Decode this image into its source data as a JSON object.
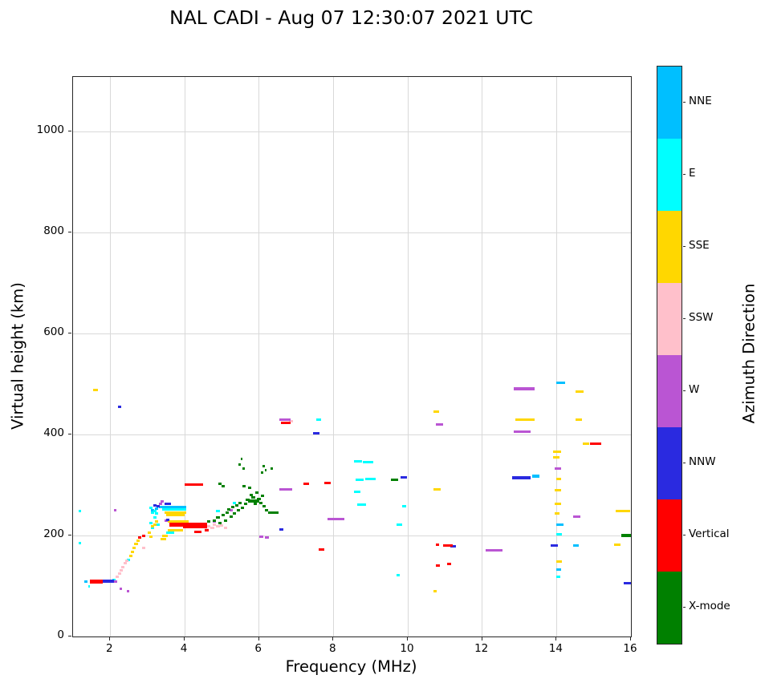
{
  "title": "NAL CADI - Aug 07 12:30:07 2021 UTC",
  "chart_data": {
    "type": "scatter",
    "title": "NAL CADI - Aug 07 12:30:07 2021 UTC",
    "xlabel": "Frequency (MHz)",
    "ylabel": "Virtual height (km)",
    "xlim": [
      1,
      16
    ],
    "ylim": [
      0,
      1108
    ],
    "xticks": [
      2,
      4,
      6,
      8,
      10,
      12,
      14,
      16
    ],
    "yticks": [
      0,
      200,
      400,
      600,
      800,
      1000
    ],
    "grid": true,
    "grid_color": "#d9d9d9",
    "legend_position": "colorbar-right",
    "marker": "horizontal-dash",
    "point_format": "[freq_MHz, height_km, width_MHz_optional, thickness_px_optional]",
    "series": [
      {
        "name": "NNE",
        "color": "#00BFFF",
        "points": [
          [
            1.3,
            108
          ],
          [
            3.1,
            250
          ],
          [
            3.2,
            253
          ],
          [
            3.3,
            256
          ],
          [
            3.4,
            257,
            0.65
          ],
          [
            13.35,
            317,
            0.18,
            4
          ],
          [
            14.0,
            502,
            0.22
          ],
          [
            14.0,
            222,
            0.18
          ],
          [
            14.0,
            132,
            0.12
          ],
          [
            14.45,
            180,
            0.15
          ]
        ]
      },
      {
        "name": "E",
        "color": "#00FFFF",
        "points": [
          [
            1.15,
            248,
            0.06
          ],
          [
            1.15,
            185,
            0.06
          ],
          [
            1.4,
            100,
            0.06
          ],
          [
            2.05,
            112
          ],
          [
            2.45,
            152
          ],
          [
            3.05,
            255
          ],
          [
            3.05,
            225
          ],
          [
            3.1,
            245
          ],
          [
            3.1,
            215
          ],
          [
            3.15,
            235
          ],
          [
            3.15,
            248
          ],
          [
            3.2,
            243
          ],
          [
            3.25,
            222
          ],
          [
            3.4,
            251,
            0.65
          ],
          [
            3.5,
            206,
            0.22
          ],
          [
            4.85,
            248
          ],
          [
            5.3,
            265
          ],
          [
            7.55,
            430,
            0.12
          ],
          [
            8.55,
            347,
            0.22
          ],
          [
            8.8,
            346,
            0.28
          ],
          [
            8.6,
            310,
            0.22
          ],
          [
            8.85,
            312,
            0.28
          ],
          [
            8.55,
            286,
            0.18
          ],
          [
            8.65,
            261,
            0.22
          ],
          [
            9.7,
            222,
            0.15
          ],
          [
            9.7,
            122
          ],
          [
            9.85,
            258,
            0.1
          ],
          [
            14.0,
            203,
            0.15
          ],
          [
            14.0,
            118,
            0.1
          ]
        ]
      },
      {
        "name": "SSE",
        "color": "#FFD700",
        "points": [
          [
            1.55,
            488,
            0.12
          ],
          [
            2.5,
            160
          ],
          [
            2.55,
            168
          ],
          [
            2.6,
            176
          ],
          [
            2.65,
            183
          ],
          [
            2.7,
            190
          ],
          [
            3.0,
            205
          ],
          [
            3.05,
            198
          ],
          [
            3.1,
            218
          ],
          [
            3.15,
            222
          ],
          [
            3.2,
            228
          ],
          [
            3.35,
            193,
            0.15
          ],
          [
            3.4,
            199,
            0.15
          ],
          [
            3.45,
            246,
            0.6
          ],
          [
            3.5,
            241,
            0.5
          ],
          [
            3.55,
            228,
            0.55
          ],
          [
            3.55,
            211,
            0.4
          ],
          [
            10.7,
            445,
            0.15
          ],
          [
            10.7,
            292,
            0.18
          ],
          [
            10.7,
            90,
            0.08
          ],
          [
            12.9,
            430,
            0.5
          ],
          [
            13.9,
            366,
            0.22
          ],
          [
            13.9,
            354,
            0.18
          ],
          [
            14.0,
            312,
            0.12
          ],
          [
            13.95,
            290,
            0.18
          ],
          [
            13.95,
            262,
            0.18
          ],
          [
            13.95,
            243,
            0.12
          ],
          [
            14.0,
            148,
            0.15
          ],
          [
            14.5,
            485,
            0.22
          ],
          [
            14.5,
            430,
            0.18
          ],
          [
            14.7,
            381,
            0.18
          ],
          [
            15.6,
            248,
            0.38
          ],
          [
            15.55,
            182,
            0.18
          ]
        ]
      },
      {
        "name": "SSW",
        "color": "#FFC0CB",
        "points": [
          [
            2.15,
            118
          ],
          [
            2.2,
            125
          ],
          [
            2.25,
            131
          ],
          [
            2.3,
            138
          ],
          [
            2.35,
            145
          ],
          [
            2.4,
            150
          ],
          [
            2.85,
            175
          ],
          [
            4.55,
            212
          ],
          [
            4.6,
            218
          ],
          [
            4.7,
            215
          ],
          [
            4.75,
            222
          ],
          [
            4.85,
            218
          ],
          [
            4.95,
            220
          ],
          [
            5.05,
            215
          ],
          [
            6.8,
            427,
            0.12
          ]
        ]
      },
      {
        "name": "W",
        "color": "#BA55D3",
        "points": [
          [
            2.1,
            108
          ],
          [
            2.1,
            250,
            0.06
          ],
          [
            2.25,
            95,
            0.06
          ],
          [
            2.45,
            90,
            0.06
          ],
          [
            3.3,
            262
          ],
          [
            3.35,
            267
          ],
          [
            3.45,
            230
          ],
          [
            4.75,
            228
          ],
          [
            5.2,
            250
          ],
          [
            6.0,
            198,
            0.12
          ],
          [
            6.15,
            196,
            0.12
          ],
          [
            6.55,
            292,
            0.35
          ],
          [
            6.55,
            429,
            0.3
          ],
          [
            7.85,
            233,
            0.45
          ],
          [
            10.75,
            420,
            0.2
          ],
          [
            12.1,
            170,
            0.45
          ],
          [
            12.85,
            490,
            0.55,
            4
          ],
          [
            12.85,
            405,
            0.45
          ],
          [
            13.95,
            333,
            0.18
          ],
          [
            14.45,
            237,
            0.18
          ]
        ]
      },
      {
        "name": "NNW",
        "color": "#2A2AE0",
        "points": [
          [
            1.8,
            109,
            0.3,
            4
          ],
          [
            2.2,
            455,
            0.1
          ],
          [
            3.15,
            260
          ],
          [
            3.25,
            258
          ],
          [
            3.45,
            262,
            0.18
          ],
          [
            3.5,
            231
          ],
          [
            6.55,
            212,
            0.1
          ],
          [
            7.45,
            403,
            0.18
          ],
          [
            9.8,
            315,
            0.18
          ],
          [
            11.15,
            179,
            0.15
          ],
          [
            12.8,
            315,
            0.5,
            4
          ],
          [
            13.85,
            180,
            0.18
          ],
          [
            15.8,
            105,
            0.2
          ]
        ]
      },
      {
        "name": "Vertical",
        "color": "#FF0000",
        "points": [
          [
            1.45,
            108,
            0.35,
            5
          ],
          [
            2.75,
            196
          ],
          [
            2.85,
            200
          ],
          [
            3.6,
            222,
            1.0,
            5
          ],
          [
            3.95,
            217,
            0.65
          ],
          [
            4.0,
            301,
            0.5
          ],
          [
            4.25,
            207,
            0.2
          ],
          [
            4.55,
            211,
            0.1
          ],
          [
            6.6,
            423,
            0.25
          ],
          [
            7.2,
            302,
            0.15
          ],
          [
            7.6,
            172,
            0.15
          ],
          [
            7.75,
            304,
            0.18
          ],
          [
            10.75,
            182,
            0.1
          ],
          [
            10.95,
            180,
            0.25
          ],
          [
            10.75,
            140,
            0.12
          ],
          [
            11.05,
            143,
            0.12
          ],
          [
            14.9,
            382,
            0.3
          ]
        ]
      },
      {
        "name": "X-mode",
        "color": "#008000",
        "points": [
          [
            4.6,
            228
          ],
          [
            4.75,
            230
          ],
          [
            4.85,
            236
          ],
          [
            4.9,
            225
          ],
          [
            4.9,
            303
          ],
          [
            5.0,
            240
          ],
          [
            5.0,
            298
          ],
          [
            5.05,
            230
          ],
          [
            5.1,
            246
          ],
          [
            5.15,
            252
          ],
          [
            5.2,
            238
          ],
          [
            5.25,
            256
          ],
          [
            5.3,
            244
          ],
          [
            5.35,
            260
          ],
          [
            5.4,
            250
          ],
          [
            5.45,
            264
          ],
          [
            5.45,
            340,
            0.06
          ],
          [
            5.5,
            255
          ],
          [
            5.5,
            352,
            0.06
          ],
          [
            5.55,
            298
          ],
          [
            5.55,
            332,
            0.06
          ],
          [
            5.6,
            262
          ],
          [
            5.65,
            270
          ],
          [
            5.7,
            268,
            0.3,
            4
          ],
          [
            5.7,
            295
          ],
          [
            5.75,
            280
          ],
          [
            5.8,
            276
          ],
          [
            5.85,
            262
          ],
          [
            5.9,
            285
          ],
          [
            5.95,
            272
          ],
          [
            6.0,
            265
          ],
          [
            6.05,
            278
          ],
          [
            6.05,
            325,
            0.06
          ],
          [
            6.1,
            258
          ],
          [
            6.1,
            338,
            0.06
          ],
          [
            6.15,
            330,
            0.06
          ],
          [
            6.15,
            250,
            0.1
          ],
          [
            6.25,
            245,
            0.28
          ],
          [
            6.3,
            333,
            0.08
          ],
          [
            9.55,
            310,
            0.2
          ],
          [
            15.75,
            200,
            0.3,
            4
          ]
        ]
      }
    ]
  },
  "colorbar": {
    "label": "Azimuth Direction",
    "categories_bottom_to_top": [
      {
        "name": "X-mode",
        "color": "#008000"
      },
      {
        "name": "Vertical",
        "color": "#FF0000"
      },
      {
        "name": "NNW",
        "color": "#2A2AE0"
      },
      {
        "name": "W",
        "color": "#BA55D3"
      },
      {
        "name": "SSW",
        "color": "#FFC0CB"
      },
      {
        "name": "SSE",
        "color": "#FFD700"
      },
      {
        "name": "E",
        "color": "#00FFFF"
      },
      {
        "name": "NNE",
        "color": "#00BFFF"
      }
    ]
  }
}
